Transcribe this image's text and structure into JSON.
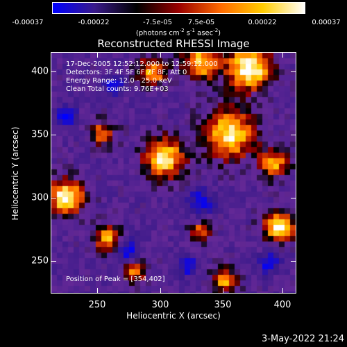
{
  "colorbar": {
    "colors": [
      "#0000ff",
      "#3a1a8a",
      "#000000",
      "#9a0000",
      "#ff6a00",
      "#ffcc00",
      "#ffffff"
    ],
    "ticks": [
      "-0.00037",
      "-0.00022",
      "-7.5e-05",
      "7.5e-05",
      "0.00022",
      "0.00037"
    ],
    "unit_prefix": "(photons cm",
    "unit_exp1": "-2",
    "unit_mid1": " s",
    "unit_exp2": "-1",
    "unit_mid2": " asec",
    "unit_exp3": "-2",
    "unit_suffix": ")"
  },
  "title": "Reconstructed RHESSI Image",
  "info": {
    "line1": "17-Dec-2005 12:52:12.000 to 12:59:12.000",
    "line2": "Detectors: 3F 4F 5F 6F 7F 8F, Att 0",
    "line3": "Energy Range: 12.0 - 25.0 keV",
    "line4": "Clean     Total counts: 9.76E+03"
  },
  "peak_text": "Position of Peak = [354,402]",
  "axes": {
    "xlabel": "Heliocentric X (arcsec)",
    "ylabel": "Heliocentric Y (arcsec)",
    "xticks": [
      "250",
      "300",
      "350",
      "400"
    ],
    "yticks": [
      "400",
      "350",
      "300",
      "250"
    ],
    "xrange": [
      215,
      410
    ],
    "yrange": [
      220,
      412
    ]
  },
  "date_stamp": "3-May-2022 21:24"
}
